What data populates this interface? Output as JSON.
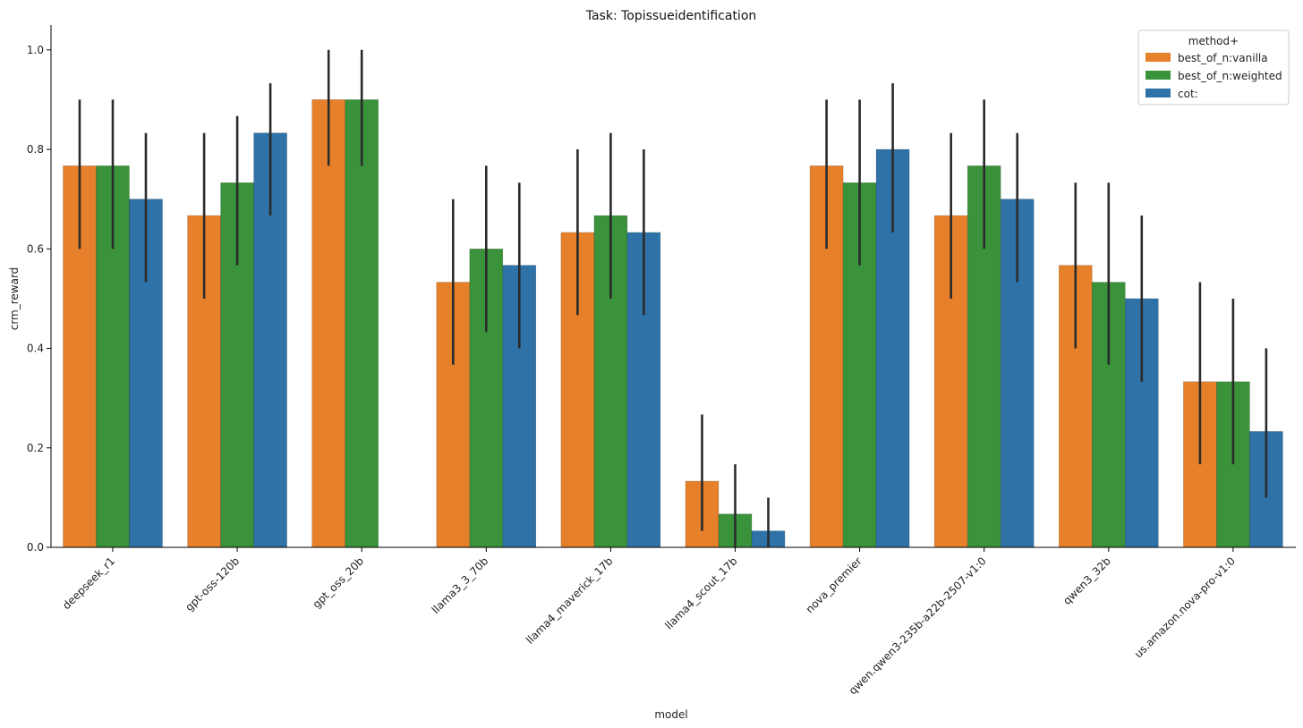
{
  "chart_data": {
    "type": "bar",
    "title": "Task: Topissueidentification",
    "xlabel": "model",
    "ylabel": "crm_reward",
    "ylim": [
      0,
      1.05
    ],
    "yticks": [
      0.0,
      0.2,
      0.4,
      0.6,
      0.8,
      1.0
    ],
    "ytick_labels": [
      "0.0",
      "0.2",
      "0.4",
      "0.6",
      "0.8",
      "1.0"
    ],
    "grid": false,
    "legend": {
      "title": "method+",
      "placement": "top-right"
    },
    "categories": [
      "deepseek_r1",
      "gpt-oss-120b",
      "gpt_oss_20b",
      "llama3_3_70b",
      "llama4_maverick_17b",
      "llama4_scout_17b",
      "nova_premier",
      "qwen.qwen3-235b-a22b-2507-v1:0",
      "qwen3_32b",
      "us.amazon.nova-pro-v1:0"
    ],
    "series": [
      {
        "name": "best_of_n:vanilla",
        "color": "#e6802a",
        "values": [
          0.767,
          0.667,
          0.9,
          0.533,
          0.633,
          0.133,
          0.767,
          0.667,
          0.567,
          0.333
        ],
        "err_low": [
          0.6,
          0.5,
          0.767,
          0.367,
          0.467,
          0.033,
          0.6,
          0.5,
          0.4,
          0.167
        ],
        "err_high": [
          0.9,
          0.833,
          1.0,
          0.7,
          0.8,
          0.267,
          0.9,
          0.833,
          0.733,
          0.533
        ]
      },
      {
        "name": "best_of_n:weighted",
        "color": "#3a923a",
        "values": [
          0.767,
          0.733,
          0.9,
          0.6,
          0.667,
          0.067,
          0.733,
          0.767,
          0.533,
          0.333
        ],
        "err_low": [
          0.6,
          0.567,
          0.767,
          0.433,
          0.5,
          0.0,
          0.567,
          0.6,
          0.367,
          0.167
        ],
        "err_high": [
          0.9,
          0.867,
          1.0,
          0.767,
          0.833,
          0.167,
          0.9,
          0.9,
          0.733,
          0.5
        ]
      },
      {
        "name": "cot:",
        "color": "#2e72a8",
        "values": [
          0.7,
          0.833,
          null,
          0.567,
          0.633,
          0.033,
          0.8,
          0.7,
          0.5,
          0.233
        ],
        "err_low": [
          0.533,
          0.667,
          null,
          0.4,
          0.467,
          0.0,
          0.633,
          0.533,
          0.333,
          0.1
        ],
        "err_high": [
          0.833,
          0.933,
          null,
          0.733,
          0.8,
          0.1,
          0.933,
          0.833,
          0.667,
          0.4
        ]
      }
    ]
  }
}
